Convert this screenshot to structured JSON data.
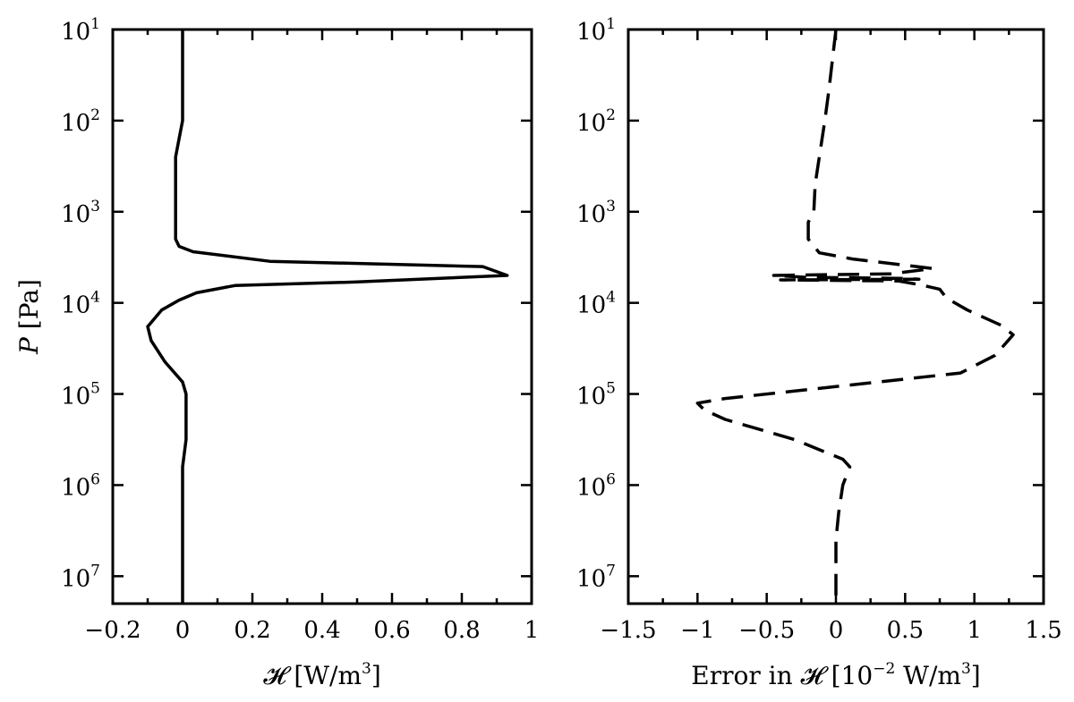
{
  "chart_data": [
    {
      "type": "line",
      "xlabel": "𝓗 [W/m³]",
      "xlabel_parts": [
        "𝓗 [W/m",
        "3",
        "]"
      ],
      "ylabel": "P [Pa]",
      "ylabel_parts": [
        "P",
        " [Pa]"
      ],
      "xlim": [
        -0.2,
        1.0
      ],
      "ylim": [
        10,
        20000000
      ],
      "yscale": "log",
      "yinverted": true,
      "grid": false,
      "xticks": [
        -0.2,
        0,
        0.2,
        0.4,
        0.6,
        0.8,
        1
      ],
      "xtick_labels": [
        "−0.2",
        "0",
        "0.2",
        "0.4",
        "0.6",
        "0.8",
        "1"
      ],
      "yticks": [
        10,
        100,
        1000,
        10000,
        100000,
        1000000,
        10000000
      ],
      "ytick_labels": [
        {
          "base": "10",
          "exp": "1"
        },
        {
          "base": "10",
          "exp": "2"
        },
        {
          "base": "10",
          "exp": "3"
        },
        {
          "base": "10",
          "exp": "4"
        },
        {
          "base": "10",
          "exp": "5"
        },
        {
          "base": "10",
          "exp": "6"
        },
        {
          "base": "10",
          "exp": "7"
        }
      ],
      "series": [
        {
          "style": "solid",
          "points": [
            [
              0.0,
              10
            ],
            [
              0.0,
              100
            ],
            [
              -0.01,
              158
            ],
            [
              -0.02,
              251
            ],
            [
              -0.02,
              1000
            ],
            [
              -0.02,
              2000
            ],
            [
              -0.01,
              2400
            ],
            [
              0.03,
              2750
            ],
            [
              0.25,
              3500
            ],
            [
              0.86,
              4000
            ],
            [
              0.93,
              5000
            ],
            [
              0.5,
              5900
            ],
            [
              0.15,
              6450
            ],
            [
              0.04,
              7760
            ],
            [
              -0.01,
              9330
            ],
            [
              -0.06,
              12000
            ],
            [
              -0.1,
              18200
            ],
            [
              -0.09,
              26000
            ],
            [
              -0.05,
              44700
            ],
            [
              0.0,
              74000
            ],
            [
              0.01,
              100000
            ],
            [
              0.01,
              169000
            ],
            [
              0.01,
              316000
            ],
            [
              0.0,
              631000
            ],
            [
              0.0,
              1000000
            ],
            [
              0.0,
              20000000
            ]
          ]
        }
      ]
    },
    {
      "type": "line",
      "xlabel": "Error in 𝓗 [10⁻² W/m³]",
      "xlabel_parts": [
        "Error in 𝓗 [10",
        "−2",
        " W/m",
        "3",
        "]"
      ],
      "ylabel": "",
      "xlim": [
        -1.5,
        1.5
      ],
      "ylim": [
        10,
        20000000
      ],
      "yscale": "log",
      "yinverted": true,
      "grid": false,
      "xticks": [
        -1.5,
        -1,
        -0.5,
        0,
        0.5,
        1,
        1.5
      ],
      "xtick_labels": [
        "−1.5",
        "−1",
        "−0.5",
        "0",
        "0.5",
        "1",
        "1.5"
      ],
      "yticks": [
        10,
        100,
        1000,
        10000,
        100000,
        1000000,
        10000000
      ],
      "ytick_labels": [
        {
          "base": "10",
          "exp": "1"
        },
        {
          "base": "10",
          "exp": "2"
        },
        {
          "base": "10",
          "exp": "3"
        },
        {
          "base": "10",
          "exp": "4"
        },
        {
          "base": "10",
          "exp": "5"
        },
        {
          "base": "10",
          "exp": "6"
        },
        {
          "base": "10",
          "exp": "7"
        }
      ],
      "series": [
        {
          "style": "dashed",
          "points": [
            [
              0.0,
              10
            ],
            [
              -0.05,
              45
            ],
            [
              -0.08,
              100
            ],
            [
              -0.15,
              500
            ],
            [
              -0.16,
              1000
            ],
            [
              -0.2,
              1300
            ],
            [
              -0.2,
              2000
            ],
            [
              -0.12,
              2820
            ],
            [
              0.12,
              3300
            ],
            [
              0.7,
              4200
            ],
            [
              0.4,
              4800
            ],
            [
              -0.45,
              5000
            ],
            [
              -0.2,
              5250
            ],
            [
              0.45,
              5370
            ],
            [
              0.6,
              5500
            ],
            [
              -0.4,
              5600
            ],
            [
              0.45,
              5750
            ],
            [
              0.6,
              6300
            ],
            [
              0.75,
              7080
            ],
            [
              0.8,
              8900
            ],
            [
              0.95,
              12000
            ],
            [
              1.2,
              17800
            ],
            [
              1.28,
              22400
            ],
            [
              1.15,
              37600
            ],
            [
              0.9,
              58900
            ],
            [
              0.0,
              83000
            ],
            [
              -0.8,
              112000
            ],
            [
              -1.0,
              126000
            ],
            [
              -0.95,
              150000
            ],
            [
              -0.8,
              190000
            ],
            [
              -0.3,
              316000
            ],
            [
              -0.1,
              420000
            ],
            [
              0.05,
              520000
            ],
            [
              0.1,
              631000
            ],
            [
              0.05,
              1000000
            ],
            [
              0.02,
              2000000
            ],
            [
              0.0,
              4000000
            ],
            [
              0.0,
              20000000
            ]
          ]
        }
      ]
    }
  ]
}
